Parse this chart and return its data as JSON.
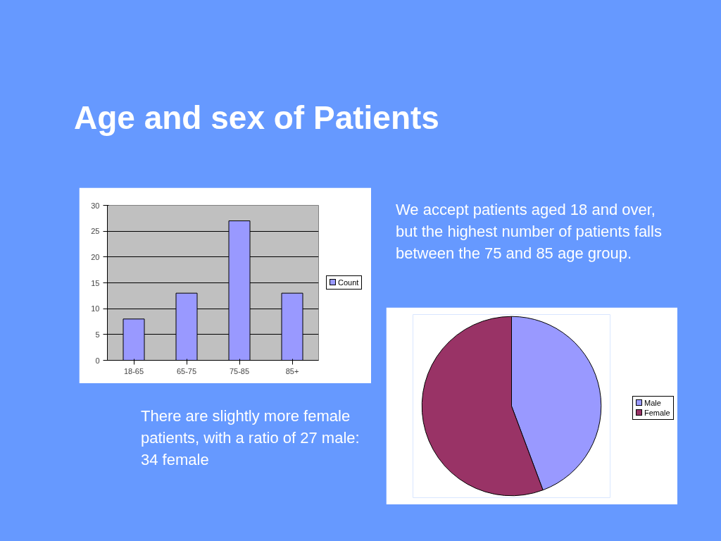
{
  "chart_data": [
    {
      "type": "bar",
      "title": "Age and sex of Patients",
      "categories": [
        "18-65",
        "65-75",
        "75-85",
        "85+"
      ],
      "series": [
        {
          "name": "Count",
          "color": "#9999ff",
          "values": [
            8,
            13,
            27,
            13
          ]
        }
      ],
      "ylim": [
        0,
        30
      ],
      "yticks": [
        0,
        5,
        10,
        15,
        20,
        25,
        30
      ],
      "grid": "y",
      "legend": "right",
      "annotations": [
        "We accept patients aged 18 and over, but the highest number of patients falls between the 75 and 85 age group."
      ]
    },
    {
      "type": "pie",
      "categories": [
        "Male",
        "Female"
      ],
      "values": [
        44.3,
        55.7
      ],
      "colors": [
        "#9999ff",
        "#993366"
      ],
      "legend": "right",
      "annotations": [
        "There are slightly more female patients, with a ratio of 27 male: 34 female"
      ]
    }
  ]
}
